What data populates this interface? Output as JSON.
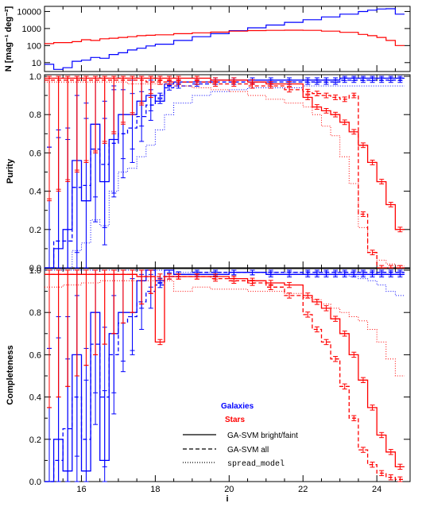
{
  "colors": {
    "galaxies": "#0000ff",
    "stars": "#ff0000",
    "neutral": "#000000"
  },
  "legend": {
    "galaxies": "Galaxies",
    "stars": "Stars",
    "bright_faint": "GA-SVM bright/faint",
    "all": "GA-SVM all",
    "spread": "spread_model"
  },
  "chart_data": [
    {
      "type": "line",
      "panel": "counts",
      "ylabel": "N [mag⁻¹ deg⁻²]",
      "yscale": "log",
      "ylim": [
        3,
        20000
      ],
      "xlim": [
        15.0,
        24.9
      ],
      "yticks": [
        "10000",
        "1000",
        "100",
        "10"
      ],
      "x": [
        15.0,
        15.25,
        15.5,
        15.75,
        16.0,
        16.25,
        16.5,
        16.75,
        17.0,
        17.25,
        17.5,
        17.75,
        18.0,
        18.5,
        19.0,
        19.5,
        20.0,
        20.5,
        21.0,
        21.5,
        22.0,
        22.5,
        23.0,
        23.5,
        23.75,
        24.0,
        24.25,
        24.5
      ],
      "series": [
        {
          "name": "Galaxies",
          "values": [
            8,
            4,
            5,
            12,
            14,
            20,
            18,
            30,
            38,
            55,
            70,
            95,
            120,
            200,
            330,
            500,
            750,
            1100,
            1600,
            2300,
            3300,
            4800,
            7000,
            10000,
            12000,
            14000,
            14500,
            7000
          ]
        },
        {
          "name": "Stars",
          "values": [
            130,
            150,
            150,
            170,
            220,
            200,
            250,
            270,
            300,
            330,
            380,
            400,
            430,
            500,
            560,
            620,
            700,
            760,
            780,
            800,
            780,
            700,
            600,
            450,
            380,
            300,
            200,
            100
          ]
        }
      ]
    },
    {
      "type": "line",
      "panel": "purity",
      "ylabel": "Purity",
      "ylim": [
        0,
        1
      ],
      "yticks": [
        "0.0",
        "0.2",
        "0.4",
        "0.6",
        "0.8",
        "1.0"
      ],
      "x": [
        15.0,
        15.25,
        15.5,
        15.75,
        16.0,
        16.25,
        16.5,
        16.75,
        17.0,
        17.25,
        17.5,
        17.75,
        18.0,
        18.25,
        18.5,
        19.0,
        19.5,
        20.0,
        20.5,
        21.0,
        21.5,
        22.0,
        22.25,
        22.5,
        22.75,
        23.0,
        23.25,
        23.5,
        23.75,
        24.0,
        24.25,
        24.5
      ],
      "series": [
        {
          "name": "Galaxies bright/faint",
          "values": [
            0.0,
            0.1,
            0.2,
            0.56,
            0.35,
            0.75,
            0.45,
            0.67,
            0.8,
            0.8,
            0.87,
            0.9,
            0.87,
            0.96,
            0.97,
            0.97,
            0.98,
            0.98,
            0.98,
            0.98,
            0.98,
            0.98,
            0.98,
            0.98,
            0.98,
            0.99,
            0.99,
            0.99,
            0.99,
            0.99,
            0.99,
            0.99
          ]
        },
        {
          "name": "Galaxies all",
          "values": [
            0.0,
            0.14,
            0.14,
            0.42,
            0.43,
            0.62,
            0.54,
            0.65,
            0.7,
            0.73,
            0.79,
            0.85,
            0.9,
            0.94,
            0.95,
            0.96,
            0.97,
            0.97,
            0.97,
            0.97,
            0.97,
            0.97,
            0.97,
            0.97,
            0.97,
            0.98,
            0.98,
            0.98,
            0.98,
            0.98,
            0.98,
            0.98
          ]
        },
        {
          "name": "Galaxies spread_model",
          "values": [
            0.0,
            0.0,
            0.0,
            0.09,
            0.13,
            0.25,
            0.22,
            0.4,
            0.5,
            0.52,
            0.58,
            0.64,
            0.72,
            0.8,
            0.86,
            0.9,
            0.92,
            0.93,
            0.94,
            0.94,
            0.94,
            0.95,
            0.95,
            0.95,
            0.95,
            0.95,
            0.95,
            0.95,
            0.95,
            0.95,
            0.95,
            0.95
          ]
        },
        {
          "name": "Stars bright/faint",
          "values": [
            0.99,
            0.99,
            0.99,
            0.99,
            0.99,
            0.99,
            0.99,
            0.99,
            0.99,
            0.99,
            0.99,
            0.99,
            0.99,
            0.99,
            0.99,
            0.99,
            0.98,
            0.98,
            0.97,
            0.96,
            0.96,
            0.89,
            0.84,
            0.82,
            0.8,
            0.76,
            0.71,
            0.64,
            0.55,
            0.45,
            0.33,
            0.2
          ]
        },
        {
          "name": "Stars all",
          "values": [
            0.98,
            0.98,
            0.98,
            0.98,
            0.98,
            0.98,
            0.98,
            0.98,
            0.98,
            0.98,
            0.98,
            0.97,
            0.97,
            0.97,
            0.97,
            0.97,
            0.96,
            0.96,
            0.95,
            0.95,
            0.93,
            0.92,
            0.91,
            0.9,
            0.89,
            0.88,
            0.9,
            0.28,
            0.08,
            0.0,
            0.0,
            0.0
          ]
        },
        {
          "name": "Stars spread_model",
          "values": [
            0.97,
            0.97,
            0.97,
            0.97,
            0.97,
            0.97,
            0.97,
            0.97,
            0.97,
            0.96,
            0.96,
            0.96,
            0.96,
            0.96,
            0.95,
            0.94,
            0.93,
            0.92,
            0.9,
            0.88,
            0.86,
            0.84,
            0.8,
            0.74,
            0.69,
            0.58,
            0.44,
            0.21,
            0.08,
            0.04,
            0.02,
            0.01
          ]
        }
      ]
    },
    {
      "type": "line",
      "panel": "completeness",
      "ylabel": "Completeness",
      "xlabel": "i",
      "ylim": [
        0,
        1
      ],
      "yticks": [
        "0.0",
        "0.2",
        "0.4",
        "0.6",
        "0.8",
        "1.0"
      ],
      "xticks": [
        "16",
        "18",
        "20",
        "22",
        "24"
      ],
      "xtick_values": [
        16,
        18,
        20,
        22,
        24
      ],
      "x": [
        15.0,
        15.25,
        15.5,
        15.75,
        16.0,
        16.25,
        16.5,
        16.75,
        17.0,
        17.25,
        17.5,
        17.75,
        18.0,
        18.25,
        18.5,
        19.0,
        19.5,
        20.0,
        20.5,
        21.0,
        21.5,
        22.0,
        22.25,
        22.5,
        22.75,
        23.0,
        23.25,
        23.5,
        23.75,
        24.0,
        24.25,
        24.5
      ],
      "series": [
        {
          "name": "Galaxies bright/faint",
          "values": [
            0.0,
            0.2,
            0.05,
            0.6,
            0.05,
            0.8,
            0.1,
            0.7,
            0.8,
            0.8,
            0.95,
            1.0,
            0.95,
            1.0,
            0.98,
            0.98,
            0.98,
            0.99,
            0.99,
            0.98,
            0.98,
            0.98,
            0.98,
            0.98,
            0.98,
            0.98,
            0.98,
            0.98,
            0.98,
            0.98,
            0.98,
            0.98
          ]
        },
        {
          "name": "Galaxies all",
          "values": [
            0.0,
            0.1,
            0.25,
            0.4,
            0.2,
            0.65,
            0.4,
            0.6,
            0.75,
            0.78,
            0.85,
            0.9,
            0.93,
            0.97,
            0.98,
            0.99,
            0.99,
            0.99,
            0.99,
            0.99,
            0.99,
            0.99,
            0.99,
            0.99,
            0.99,
            0.99,
            0.99,
            0.99,
            0.99,
            0.99,
            0.99,
            0.99
          ]
        },
        {
          "name": "Galaxies spread_model",
          "values": [
            1.0,
            1.0,
            1.0,
            1.0,
            1.0,
            1.0,
            1.0,
            1.0,
            1.0,
            1.0,
            1.0,
            1.0,
            1.0,
            1.0,
            0.99,
            0.99,
            0.99,
            0.99,
            0.99,
            0.99,
            0.99,
            0.98,
            0.98,
            0.98,
            0.98,
            0.98,
            0.97,
            0.96,
            0.95,
            0.93,
            0.9,
            0.88
          ]
        },
        {
          "name": "Stars bright/faint",
          "values": [
            0.98,
            0.98,
            0.98,
            0.98,
            0.98,
            0.98,
            0.98,
            0.98,
            0.98,
            0.98,
            0.97,
            0.97,
            0.66,
            0.97,
            0.97,
            0.97,
            0.97,
            0.96,
            0.95,
            0.94,
            0.93,
            0.88,
            0.85,
            0.82,
            0.77,
            0.7,
            0.6,
            0.48,
            0.35,
            0.22,
            0.14,
            0.07
          ]
        },
        {
          "name": "Stars all",
          "values": [
            0.98,
            0.98,
            0.98,
            0.98,
            0.98,
            0.98,
            0.98,
            0.98,
            0.98,
            0.98,
            0.97,
            0.97,
            0.97,
            0.97,
            0.97,
            0.97,
            0.96,
            0.95,
            0.94,
            0.92,
            0.88,
            0.79,
            0.72,
            0.66,
            0.58,
            0.45,
            0.3,
            0.15,
            0.08,
            0.04,
            0.02,
            0.01
          ]
        },
        {
          "name": "Stars spread_model",
          "values": [
            0.92,
            0.92,
            0.93,
            0.93,
            0.94,
            0.94,
            0.95,
            0.95,
            0.95,
            0.95,
            0.95,
            0.95,
            0.95,
            0.95,
            0.9,
            0.92,
            0.91,
            0.91,
            0.9,
            0.9,
            0.89,
            0.87,
            0.86,
            0.84,
            0.82,
            0.8,
            0.78,
            0.76,
            0.72,
            0.66,
            0.58,
            0.5
          ]
        }
      ]
    }
  ]
}
